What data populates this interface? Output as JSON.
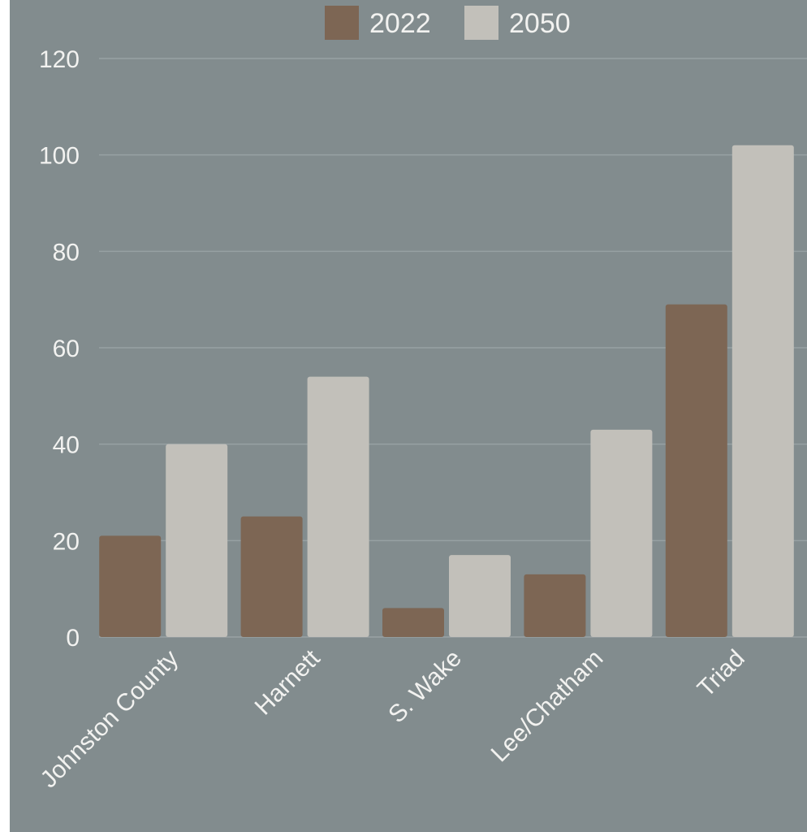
{
  "chart_data": {
    "type": "bar",
    "categories": [
      "Johnston County",
      "Harnett",
      "S. Wake",
      "Lee/Chatham",
      "Triad"
    ],
    "series": [
      {
        "name": "2022",
        "values": [
          21,
          25,
          6,
          13,
          69
        ],
        "color": "#7d6654"
      },
      {
        "name": "2050",
        "values": [
          40,
          54,
          17,
          43,
          102
        ],
        "color": "#c2c0ba"
      }
    ],
    "ylim": [
      0,
      120
    ],
    "yticks": [
      0,
      20,
      40,
      60,
      80,
      100,
      120
    ],
    "grid": true,
    "legend": "top-center",
    "background": "#828c8e"
  }
}
